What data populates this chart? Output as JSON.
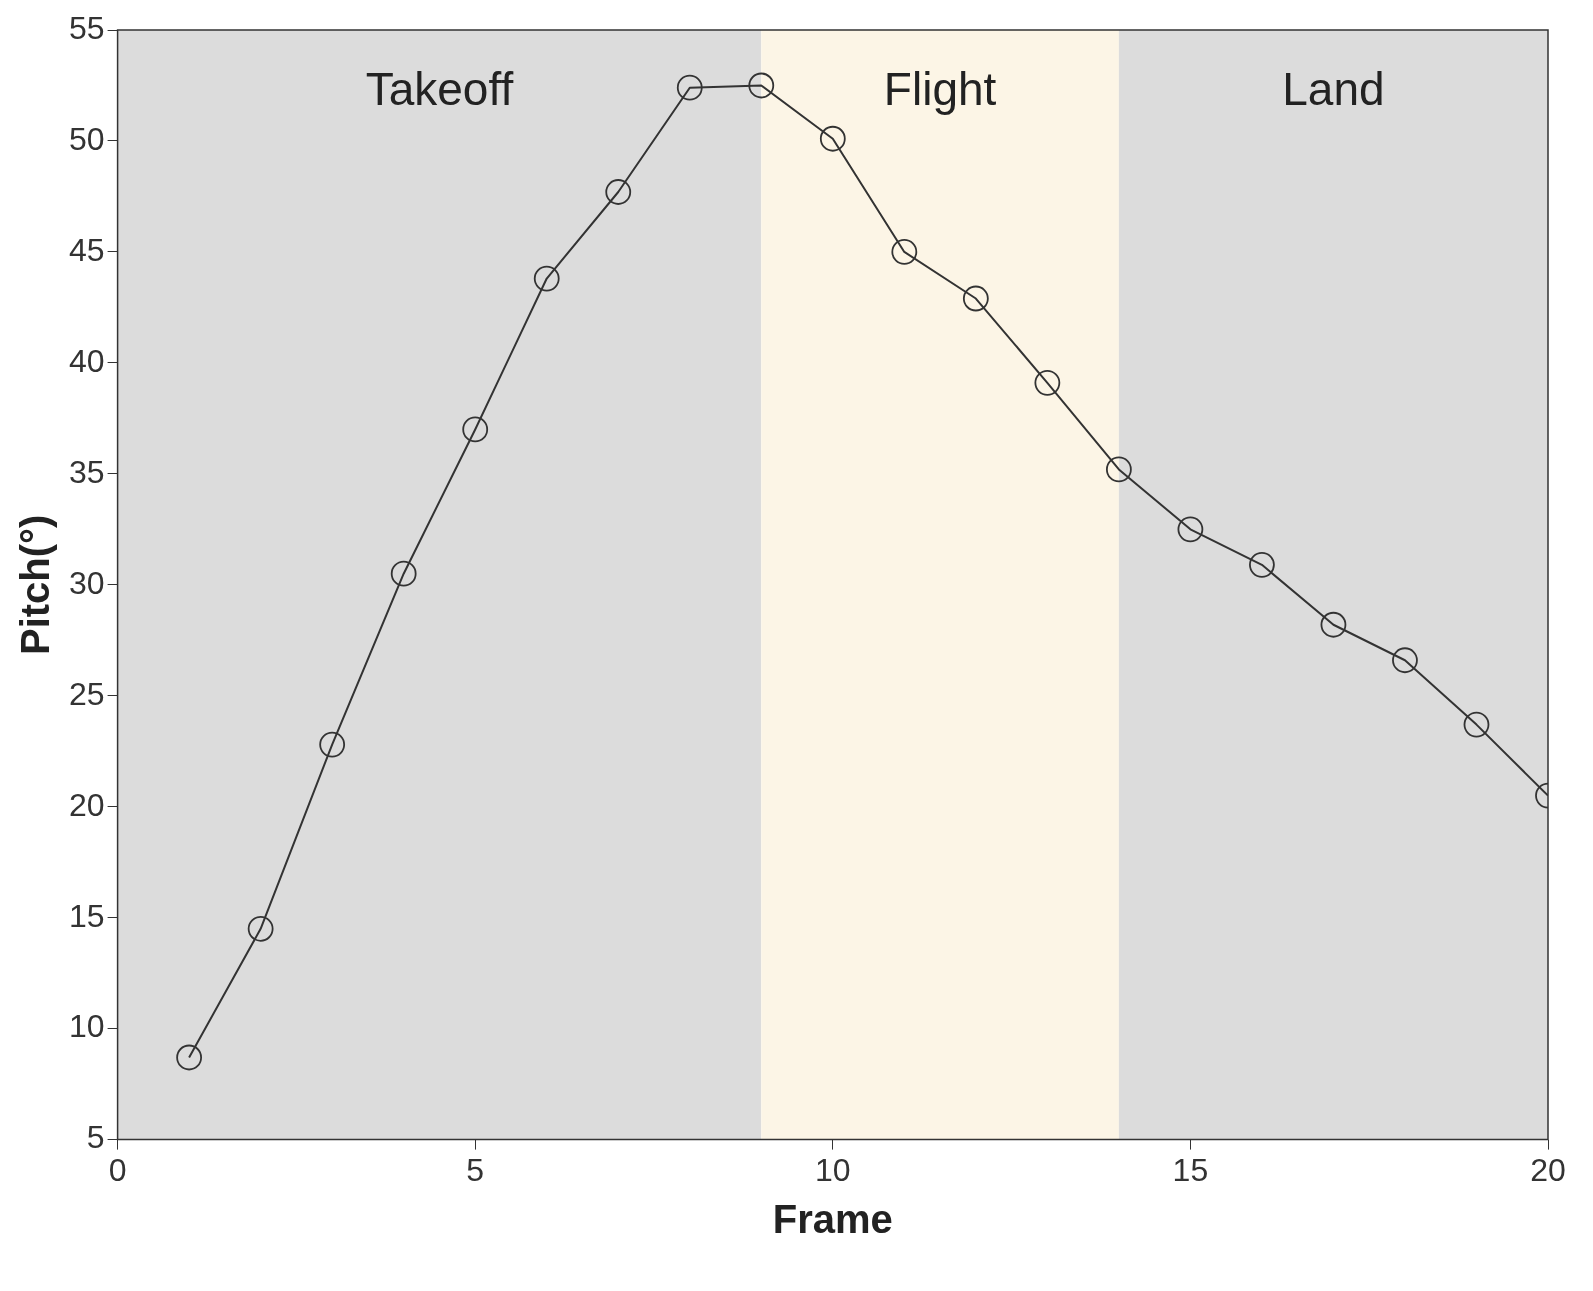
{
  "chart_data": {
    "type": "line",
    "xlabel": "Frame",
    "ylabel": "Pitch(°)",
    "x": [
      1,
      2,
      3,
      4,
      5,
      6,
      7,
      8,
      9,
      10,
      11,
      12,
      13,
      14,
      15,
      16,
      17,
      18,
      19,
      20
    ],
    "series": [
      {
        "color": "#333333",
        "values": [
          8.7,
          14.5,
          22.8,
          30.5,
          37.0,
          43.8,
          47.7,
          52.4,
          52.5,
          50.1,
          45.0,
          42.9,
          39.1,
          35.2,
          32.5,
          30.9,
          28.2,
          26.6,
          23.7,
          20.5
        ]
      }
    ],
    "xlim": [
      0,
      20
    ],
    "xticks": [
      0,
      5,
      10,
      15,
      20
    ],
    "ylim": [
      5,
      55
    ],
    "yticks": [
      5,
      10,
      15,
      20,
      25,
      30,
      35,
      40,
      45,
      50,
      55
    ],
    "bands": [
      {
        "axis": "x",
        "from": 0,
        "to": 9,
        "label": "Takeoff",
        "color": "#dcdcdc"
      },
      {
        "axis": "x",
        "from": 9,
        "to": 14,
        "label": "Flight",
        "color": "#fcf5e6"
      },
      {
        "axis": "x",
        "from": 14,
        "to": 20,
        "label": "Land",
        "color": "#dcdcdc"
      }
    ],
    "grid": false,
    "legend": false,
    "marker": "circle",
    "line_style": "solid"
  }
}
